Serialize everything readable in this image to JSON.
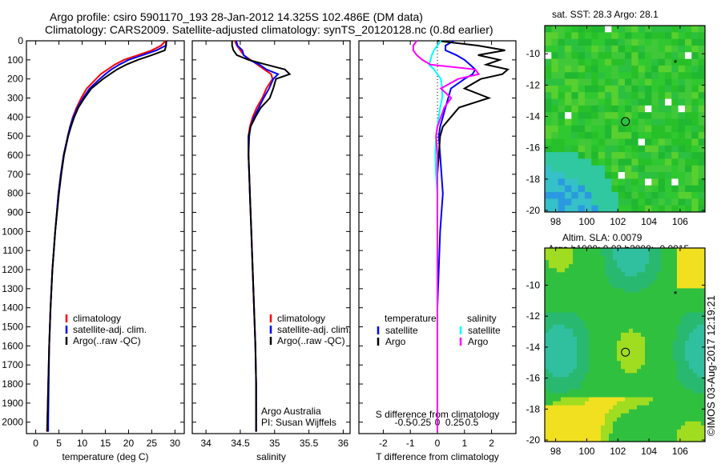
{
  "title": {
    "line1": "Argo profile: csiro 5901170_193 28-Jan-2012 14.325S 102.486E (DM data)",
    "line2": "Climatology: CARS2009. Satellite-adjusted climatology: synTS_20120128.nc (0.8d earlier)"
  },
  "footer_stamp": "©IMOS 03-Aug-2017 12:19:21",
  "colors": {
    "climatology": "#ff0000",
    "satellite": "#0000ff",
    "argo": "#000000",
    "sal_satellite": "#00ffff",
    "sal_argo": "#ff00ff"
  },
  "chart_data": [
    {
      "type": "line",
      "xlabel": "temperature (deg C)",
      "ylabel": "",
      "xlim": [
        -2,
        32
      ],
      "ylim": [
        2060,
        0
      ],
      "xticks": [
        "0",
        "5",
        "10",
        "15",
        "20",
        "25",
        "30"
      ],
      "xtick_values": [
        0,
        5,
        10,
        15,
        20,
        25,
        30
      ],
      "yticks": [
        "0",
        "100",
        "200",
        "300",
        "400",
        "500",
        "600",
        "700",
        "800",
        "900",
        "1000",
        "1100",
        "1200",
        "1300",
        "1400",
        "1500",
        "1600",
        "1700",
        "1800",
        "1900",
        "2000"
      ],
      "depth": [
        0,
        25,
        50,
        75,
        100,
        125,
        150,
        175,
        200,
        250,
        300,
        350,
        400,
        450,
        500,
        600,
        700,
        800,
        1000,
        1200,
        1400,
        1600,
        1800,
        2000,
        2050
      ],
      "series": [
        {
          "name": "climatology",
          "color_key": "climatology",
          "values": [
            28,
            27,
            25,
            22,
            19,
            17,
            15.5,
            14,
            13,
            11,
            9.8,
            8.8,
            8,
            7.4,
            6.9,
            6.0,
            5.4,
            4.9,
            4.2,
            3.6,
            3.2,
            2.9,
            2.7,
            2.5,
            2.4
          ]
        },
        {
          "name": "satellite-adj. clim.",
          "color_key": "satellite",
          "values": [
            28.2,
            28,
            26,
            23,
            20,
            18,
            16.3,
            15,
            13.8,
            11.6,
            10.2,
            9.0,
            8.1,
            7.4,
            6.9,
            6.0,
            5.4,
            4.9,
            4.2,
            3.6,
            3.2,
            2.9,
            2.8,
            2.7,
            2.7
          ]
        },
        {
          "name": "Argo(..raw -QC)",
          "color_key": "argo",
          "values": [
            28.1,
            28.1,
            27.8,
            25,
            22,
            19.5,
            17.5,
            16,
            14.5,
            12,
            10.5,
            9.2,
            8.3,
            7.6,
            7.0,
            6.1,
            5.5,
            5.0,
            4.2,
            3.6,
            3.2,
            2.9,
            2.7,
            2.5,
            2.5
          ]
        }
      ],
      "legend": [
        "climatology",
        "satellite-adj. clim.",
        "Argo(..raw -QC)"
      ]
    },
    {
      "type": "line",
      "xlabel": "salinity",
      "xlim": [
        33.8,
        36.1
      ],
      "ylim": [
        2060,
        0
      ],
      "xticks": [
        "34",
        "34.5",
        "35",
        "35.5",
        "36"
      ],
      "xtick_values": [
        34,
        34.5,
        35,
        35.5,
        36
      ],
      "depth": [
        0,
        25,
        50,
        75,
        100,
        125,
        150,
        175,
        200,
        250,
        300,
        350,
        400,
        450,
        500,
        600,
        700,
        800,
        1000,
        1200,
        1400,
        1600,
        1800,
        2000,
        2050
      ],
      "series": [
        {
          "name": "climatology",
          "color_key": "climatology",
          "values": [
            34.42,
            34.45,
            34.5,
            34.55,
            34.65,
            34.75,
            34.85,
            34.95,
            34.97,
            34.88,
            34.82,
            34.74,
            34.68,
            34.64,
            34.62,
            34.62,
            34.63,
            34.64,
            34.66,
            34.68,
            34.7,
            34.72,
            34.73,
            34.73,
            34.73
          ]
        },
        {
          "name": "satellite-adj. clim.",
          "color_key": "satellite",
          "values": [
            34.44,
            34.46,
            34.53,
            34.55,
            34.63,
            34.78,
            34.88,
            35.05,
            34.98,
            34.92,
            34.84,
            34.77,
            34.7,
            34.65,
            34.63,
            34.62,
            34.63,
            34.64,
            34.66,
            34.68,
            34.7,
            34.72,
            34.73,
            34.73,
            34.73
          ]
        },
        {
          "name": "Argo(..raw -QC)",
          "color_key": "argo",
          "values": [
            34.38,
            34.38,
            34.4,
            34.45,
            34.62,
            34.88,
            35.15,
            35.22,
            35.02,
            34.98,
            34.93,
            34.8,
            34.72,
            34.65,
            34.62,
            34.62,
            34.63,
            34.64,
            34.66,
            34.68,
            34.7,
            34.72,
            34.73,
            34.73,
            34.73
          ]
        }
      ],
      "legend": [
        "climatology",
        "satellite-adj. clim.",
        "Argo(..raw -QC)"
      ],
      "annotation": [
        "Argo Australia",
        "PI: Susan Wijffels"
      ]
    },
    {
      "type": "line",
      "xlabel": "T difference from climatology",
      "xlabel_top": "S difference from climatology",
      "xlim": [
        -2.9,
        2.9
      ],
      "ylim": [
        2060,
        0
      ],
      "xticks": [
        "-2",
        "-1",
        "0",
        "1",
        "2"
      ],
      "xtick_values": [
        -2,
        -1,
        0,
        1,
        2
      ],
      "s_xticks": [
        "-0.5",
        "-0.25",
        "0",
        "0.25",
        "0.5"
      ],
      "s_xtick_values": [
        -0.5,
        -0.25,
        0,
        0.25,
        0.5
      ],
      "depth": [
        0,
        25,
        50,
        75,
        100,
        125,
        150,
        175,
        200,
        250,
        300,
        350,
        400,
        450,
        500,
        600,
        700,
        800,
        1000,
        1200,
        1400,
        1600,
        1800,
        2000,
        2050
      ],
      "series": [
        {
          "name": "temperature satellite",
          "color_key": "satellite",
          "scale": "T",
          "values": [
            0.6,
            0.3,
            0.3,
            0.7,
            1.0,
            1.2,
            1.4,
            1.3,
            1.0,
            0.5,
            0.4,
            0.3,
            0.2,
            0.1,
            0.05,
            0.1,
            0.15,
            0.2,
            0.1,
            0.05,
            0.0,
            0.0,
            0.0,
            0.0,
            0.0
          ]
        },
        {
          "name": "temperature Argo",
          "color_key": "argo",
          "scale": "T",
          "values": [
            0,
            1.5,
            2.5,
            1.5,
            2.3,
            1.8,
            2.6,
            2.4,
            1.6,
            1.0,
            1.9,
            0.8,
            0.5,
            0.2,
            0.1,
            0.05,
            0.0,
            0.0,
            0.0,
            0.0,
            0.0,
            0.0,
            0.0,
            0.0,
            0.0
          ]
        },
        {
          "name": "salinity satellite",
          "color_key": "sal_satellite",
          "scale": "S",
          "values": [
            0.05,
            0.0,
            -0.05,
            -0.08,
            -0.1,
            -0.12,
            -0.05,
            0.0,
            0.05,
            0.07,
            0.07,
            0.04,
            0.02,
            0.0,
            -0.02,
            -0.03,
            -0.02,
            0.0,
            0.0,
            0.0,
            0.0,
            0.0,
            0.0,
            0.0,
            0.0
          ]
        },
        {
          "name": "salinity Argo",
          "color_key": "sal_argo",
          "scale": "S",
          "values": [
            -0.3,
            -0.35,
            -0.35,
            -0.3,
            -0.22,
            -0.1,
            0.55,
            0.6,
            0.3,
            0.05,
            0.2,
            0.1,
            0.05,
            0.0,
            -0.02,
            0.0,
            0.0,
            0.0,
            0.0,
            0.0,
            0.0,
            0.0,
            0.0,
            0.0,
            0.0
          ]
        }
      ],
      "legend": {
        "temperature_title": "temperature",
        "salinity_title": "salinity",
        "satellite": "satellite",
        "argo": "Argo"
      }
    },
    {
      "type": "heatmap",
      "title": "sat. SST: 28.3 Argo: 28.1",
      "xticks": [
        "98",
        "100",
        "102",
        "104",
        "106"
      ],
      "yticks": [
        "-10",
        "-12",
        "-14",
        "-16",
        "-18",
        "-20"
      ],
      "xlim": [
        97.3,
        107.6
      ],
      "ylim": [
        -20.1,
        -8.2
      ]
    },
    {
      "type": "heatmap",
      "title": "Altim. SLA: 0.0079",
      "subtitle": "Argo h1000: 0.03 h2000: -0.0015",
      "xticks": [
        "98",
        "100",
        "102",
        "104",
        "106"
      ],
      "yticks": [
        "-10",
        "-12",
        "-14",
        "-16",
        "-18",
        "-20"
      ],
      "xlim": [
        97.3,
        107.6
      ],
      "ylim": [
        -20.1,
        -7.6
      ]
    }
  ]
}
